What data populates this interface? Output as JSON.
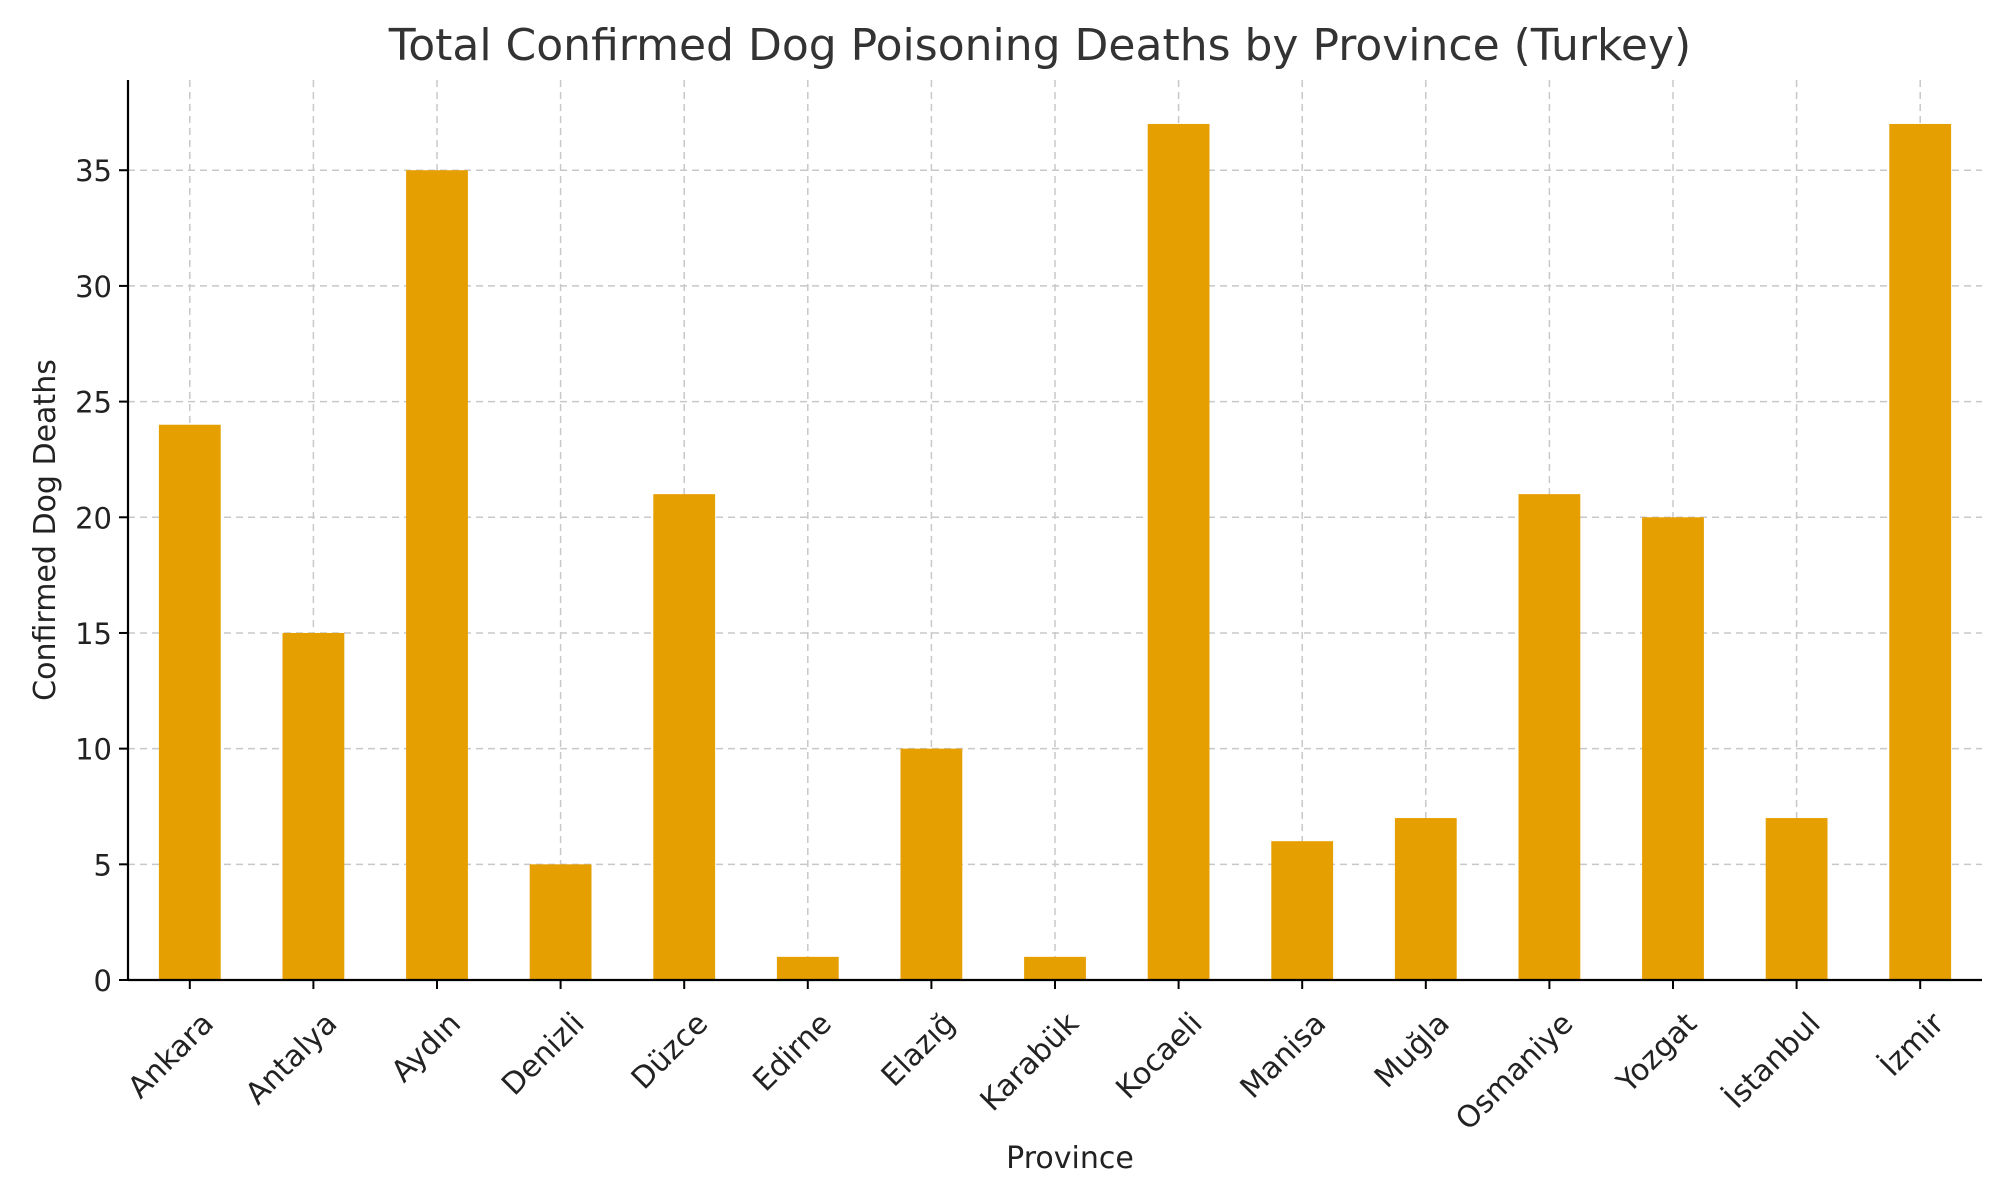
{
  "chart_data": {
    "type": "bar",
    "title": "Total Confirmed Dog Poisoning Deaths by Province (Turkey)",
    "xlabel": "Province",
    "ylabel": "Confirmed Dog Deaths",
    "categories": [
      "Ankara",
      "Antalya",
      "Aydın",
      "Denizli",
      "Düzce",
      "Edirne",
      "Elazığ",
      "Karabük",
      "Kocaeli",
      "Manisa",
      "Muğla",
      "Osmaniye",
      "Yozgat",
      "İstanbul",
      "İzmir"
    ],
    "values": [
      24,
      15,
      35,
      5,
      21,
      1,
      10,
      1,
      37,
      6,
      7,
      21,
      20,
      7,
      37
    ],
    "yticks": [
      0,
      5,
      10,
      15,
      20,
      25,
      30,
      35
    ],
    "ylim": [
      0,
      38.9
    ],
    "grid": true,
    "bar_color": "#E69F00",
    "grid_color": "#c8c8c8",
    "text_color": "#333333"
  }
}
